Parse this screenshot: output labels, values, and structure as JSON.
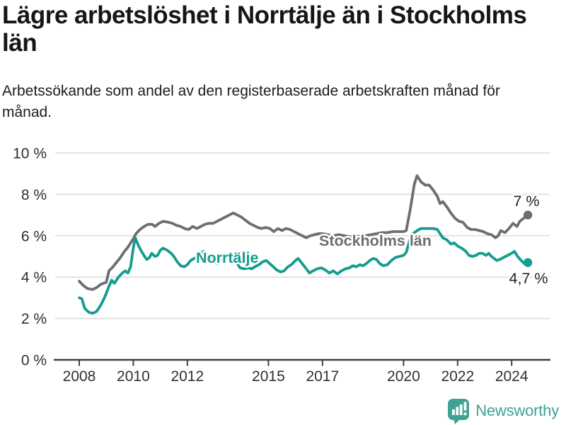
{
  "header": {
    "title": "Lägre arbetslöshet i Norrtälje än i Stockholms län",
    "subtitle": "Arbetssökande som andel av den registerbaserade arbetskraften månad för månad."
  },
  "chart_data": {
    "type": "line",
    "title": "Lägre arbetslöshet i Norrtälje än i Stockholms län",
    "x_axis": {
      "unit": "year",
      "ticks": [
        2008,
        2010,
        2012,
        2015,
        2017,
        2020,
        2022,
        2024
      ],
      "range": [
        2007.1,
        2025.4
      ]
    },
    "y_axis": {
      "unit": "%",
      "ticks": [
        0,
        2,
        4,
        6,
        8,
        10
      ],
      "range": [
        0,
        10
      ],
      "label_format": "{value} %"
    },
    "grid": true,
    "legend": "inline-labels",
    "series": [
      {
        "name": "Stockholms län",
        "color": "#6D6E71",
        "end_label": "7 %",
        "end_value": 7.0,
        "points": [
          [
            2008.0,
            3.8
          ],
          [
            2008.15,
            3.6
          ],
          [
            2008.3,
            3.45
          ],
          [
            2008.5,
            3.4
          ],
          [
            2008.65,
            3.5
          ],
          [
            2008.8,
            3.65
          ],
          [
            2009.0,
            3.75
          ],
          [
            2009.1,
            4.3
          ],
          [
            2009.25,
            4.5
          ],
          [
            2009.4,
            4.75
          ],
          [
            2009.5,
            4.9
          ],
          [
            2009.65,
            5.2
          ],
          [
            2009.8,
            5.45
          ],
          [
            2009.9,
            5.65
          ],
          [
            2010.0,
            5.85
          ],
          [
            2010.1,
            6.1
          ],
          [
            2010.25,
            6.3
          ],
          [
            2010.4,
            6.45
          ],
          [
            2010.55,
            6.55
          ],
          [
            2010.7,
            6.55
          ],
          [
            2010.8,
            6.45
          ],
          [
            2010.95,
            6.6
          ],
          [
            2011.1,
            6.7
          ],
          [
            2011.3,
            6.65
          ],
          [
            2011.45,
            6.6
          ],
          [
            2011.6,
            6.5
          ],
          [
            2011.75,
            6.45
          ],
          [
            2011.9,
            6.35
          ],
          [
            2012.05,
            6.3
          ],
          [
            2012.2,
            6.45
          ],
          [
            2012.35,
            6.35
          ],
          [
            2012.5,
            6.45
          ],
          [
            2012.65,
            6.55
          ],
          [
            2012.8,
            6.6
          ],
          [
            2012.95,
            6.6
          ],
          [
            2013.1,
            6.7
          ],
          [
            2013.25,
            6.8
          ],
          [
            2013.4,
            6.9
          ],
          [
            2013.55,
            7.0
          ],
          [
            2013.7,
            7.1
          ],
          [
            2013.85,
            7.0
          ],
          [
            2014.0,
            6.9
          ],
          [
            2014.15,
            6.75
          ],
          [
            2014.3,
            6.6
          ],
          [
            2014.45,
            6.5
          ],
          [
            2014.6,
            6.4
          ],
          [
            2014.75,
            6.35
          ],
          [
            2014.9,
            6.4
          ],
          [
            2015.05,
            6.35
          ],
          [
            2015.2,
            6.2
          ],
          [
            2015.35,
            6.35
          ],
          [
            2015.5,
            6.25
          ],
          [
            2015.65,
            6.35
          ],
          [
            2015.8,
            6.3
          ],
          [
            2015.95,
            6.2
          ],
          [
            2016.1,
            6.1
          ],
          [
            2016.25,
            6.0
          ],
          [
            2016.4,
            5.9
          ],
          [
            2016.55,
            6.0
          ],
          [
            2016.7,
            6.05
          ],
          [
            2016.85,
            6.1
          ],
          [
            2017.0,
            6.1
          ],
          [
            2017.2,
            6.05
          ],
          [
            2017.4,
            6.0
          ],
          [
            2017.6,
            6.05
          ],
          [
            2017.8,
            6.0
          ],
          [
            2018.0,
            5.95
          ],
          [
            2018.2,
            6.0
          ],
          [
            2018.4,
            5.95
          ],
          [
            2018.6,
            6.0
          ],
          [
            2018.8,
            6.05
          ],
          [
            2019.0,
            6.1
          ],
          [
            2019.2,
            6.15
          ],
          [
            2019.4,
            6.15
          ],
          [
            2019.6,
            6.2
          ],
          [
            2019.8,
            6.2
          ],
          [
            2020.0,
            6.2
          ],
          [
            2020.1,
            6.25
          ],
          [
            2020.25,
            7.3
          ],
          [
            2020.4,
            8.5
          ],
          [
            2020.5,
            8.9
          ],
          [
            2020.65,
            8.6
          ],
          [
            2020.8,
            8.45
          ],
          [
            2020.95,
            8.45
          ],
          [
            2021.1,
            8.2
          ],
          [
            2021.25,
            7.9
          ],
          [
            2021.35,
            7.55
          ],
          [
            2021.45,
            7.65
          ],
          [
            2021.6,
            7.4
          ],
          [
            2021.75,
            7.1
          ],
          [
            2021.9,
            6.85
          ],
          [
            2022.05,
            6.7
          ],
          [
            2022.2,
            6.65
          ],
          [
            2022.35,
            6.4
          ],
          [
            2022.5,
            6.3
          ],
          [
            2022.65,
            6.3
          ],
          [
            2022.8,
            6.25
          ],
          [
            2022.95,
            6.2
          ],
          [
            2023.1,
            6.1
          ],
          [
            2023.25,
            6.05
          ],
          [
            2023.4,
            5.9
          ],
          [
            2023.5,
            6.0
          ],
          [
            2023.6,
            6.25
          ],
          [
            2023.75,
            6.15
          ],
          [
            2023.9,
            6.35
          ],
          [
            2024.05,
            6.6
          ],
          [
            2024.2,
            6.45
          ],
          [
            2024.3,
            6.7
          ],
          [
            2024.45,
            6.85
          ],
          [
            2024.6,
            7.0
          ]
        ]
      },
      {
        "name": "Norrtälje",
        "color": "#159C8E",
        "end_label": "4,7 %",
        "end_value": 4.7,
        "points": [
          [
            2008.0,
            3.0
          ],
          [
            2008.1,
            2.95
          ],
          [
            2008.2,
            2.5
          ],
          [
            2008.35,
            2.3
          ],
          [
            2008.5,
            2.25
          ],
          [
            2008.65,
            2.35
          ],
          [
            2008.8,
            2.65
          ],
          [
            2008.95,
            3.05
          ],
          [
            2009.1,
            3.55
          ],
          [
            2009.2,
            3.85
          ],
          [
            2009.3,
            3.7
          ],
          [
            2009.45,
            4.0
          ],
          [
            2009.6,
            4.2
          ],
          [
            2009.7,
            4.3
          ],
          [
            2009.8,
            4.2
          ],
          [
            2009.9,
            4.5
          ],
          [
            2010.0,
            5.4
          ],
          [
            2010.07,
            5.9
          ],
          [
            2010.2,
            5.5
          ],
          [
            2010.3,
            5.25
          ],
          [
            2010.42,
            5.0
          ],
          [
            2010.5,
            4.85
          ],
          [
            2010.6,
            4.95
          ],
          [
            2010.68,
            5.15
          ],
          [
            2010.8,
            5.0
          ],
          [
            2010.9,
            5.05
          ],
          [
            2011.0,
            5.3
          ],
          [
            2011.1,
            5.4
          ],
          [
            2011.25,
            5.3
          ],
          [
            2011.4,
            5.15
          ],
          [
            2011.5,
            5.0
          ],
          [
            2011.62,
            4.75
          ],
          [
            2011.75,
            4.55
          ],
          [
            2011.88,
            4.5
          ],
          [
            2012.0,
            4.6
          ],
          [
            2012.12,
            4.8
          ],
          [
            2012.25,
            4.9
          ],
          [
            2012.4,
            5.0
          ],
          [
            2012.5,
            5.15
          ],
          [
            2012.6,
            5.25
          ],
          [
            2012.75,
            5.05
          ],
          [
            2012.88,
            4.9
          ],
          [
            2013.0,
            4.8
          ],
          [
            2013.12,
            4.65
          ],
          [
            2013.25,
            4.85
          ],
          [
            2013.4,
            4.95
          ],
          [
            2013.55,
            5.05
          ],
          [
            2013.65,
            5.1
          ],
          [
            2013.8,
            4.75
          ],
          [
            2013.95,
            4.45
          ],
          [
            2014.1,
            4.4
          ],
          [
            2014.25,
            4.45
          ],
          [
            2014.38,
            4.4
          ],
          [
            2014.5,
            4.5
          ],
          [
            2014.65,
            4.6
          ],
          [
            2014.8,
            4.75
          ],
          [
            2014.92,
            4.8
          ],
          [
            2015.05,
            4.65
          ],
          [
            2015.18,
            4.5
          ],
          [
            2015.3,
            4.35
          ],
          [
            2015.45,
            4.25
          ],
          [
            2015.58,
            4.3
          ],
          [
            2015.72,
            4.5
          ],
          [
            2015.85,
            4.6
          ],
          [
            2016.0,
            4.8
          ],
          [
            2016.1,
            4.9
          ],
          [
            2016.25,
            4.65
          ],
          [
            2016.4,
            4.4
          ],
          [
            2016.52,
            4.2
          ],
          [
            2016.65,
            4.3
          ],
          [
            2016.8,
            4.4
          ],
          [
            2016.95,
            4.45
          ],
          [
            2017.1,
            4.35
          ],
          [
            2017.25,
            4.2
          ],
          [
            2017.4,
            4.3
          ],
          [
            2017.55,
            4.15
          ],
          [
            2017.7,
            4.3
          ],
          [
            2017.85,
            4.4
          ],
          [
            2018.0,
            4.45
          ],
          [
            2018.12,
            4.55
          ],
          [
            2018.25,
            4.5
          ],
          [
            2018.38,
            4.6
          ],
          [
            2018.5,
            4.55
          ],
          [
            2018.62,
            4.65
          ],
          [
            2018.75,
            4.8
          ],
          [
            2018.88,
            4.9
          ],
          [
            2019.0,
            4.85
          ],
          [
            2019.12,
            4.65
          ],
          [
            2019.25,
            4.55
          ],
          [
            2019.4,
            4.6
          ],
          [
            2019.55,
            4.8
          ],
          [
            2019.7,
            4.95
          ],
          [
            2019.85,
            5.0
          ],
          [
            2020.0,
            5.05
          ],
          [
            2020.1,
            5.2
          ],
          [
            2020.22,
            5.75
          ],
          [
            2020.35,
            6.1
          ],
          [
            2020.5,
            6.25
          ],
          [
            2020.65,
            6.35
          ],
          [
            2020.8,
            6.35
          ],
          [
            2020.95,
            6.35
          ],
          [
            2021.1,
            6.35
          ],
          [
            2021.25,
            6.3
          ],
          [
            2021.35,
            6.1
          ],
          [
            2021.45,
            5.9
          ],
          [
            2021.6,
            5.8
          ],
          [
            2021.75,
            5.6
          ],
          [
            2021.88,
            5.65
          ],
          [
            2022.0,
            5.5
          ],
          [
            2022.15,
            5.4
          ],
          [
            2022.3,
            5.25
          ],
          [
            2022.42,
            5.05
          ],
          [
            2022.55,
            5.0
          ],
          [
            2022.68,
            5.05
          ],
          [
            2022.8,
            5.15
          ],
          [
            2022.92,
            5.15
          ],
          [
            2023.05,
            5.05
          ],
          [
            2023.15,
            5.15
          ],
          [
            2023.25,
            5.0
          ],
          [
            2023.35,
            4.9
          ],
          [
            2023.45,
            4.8
          ],
          [
            2023.55,
            4.85
          ],
          [
            2023.7,
            4.95
          ],
          [
            2023.85,
            5.05
          ],
          [
            2024.0,
            5.15
          ],
          [
            2024.1,
            5.25
          ],
          [
            2024.22,
            5.0
          ],
          [
            2024.35,
            4.8
          ],
          [
            2024.47,
            4.65
          ],
          [
            2024.6,
            4.7
          ]
        ]
      }
    ]
  },
  "footer": {
    "brand": "Newsworthy",
    "brand_color": "#3FA295"
  }
}
